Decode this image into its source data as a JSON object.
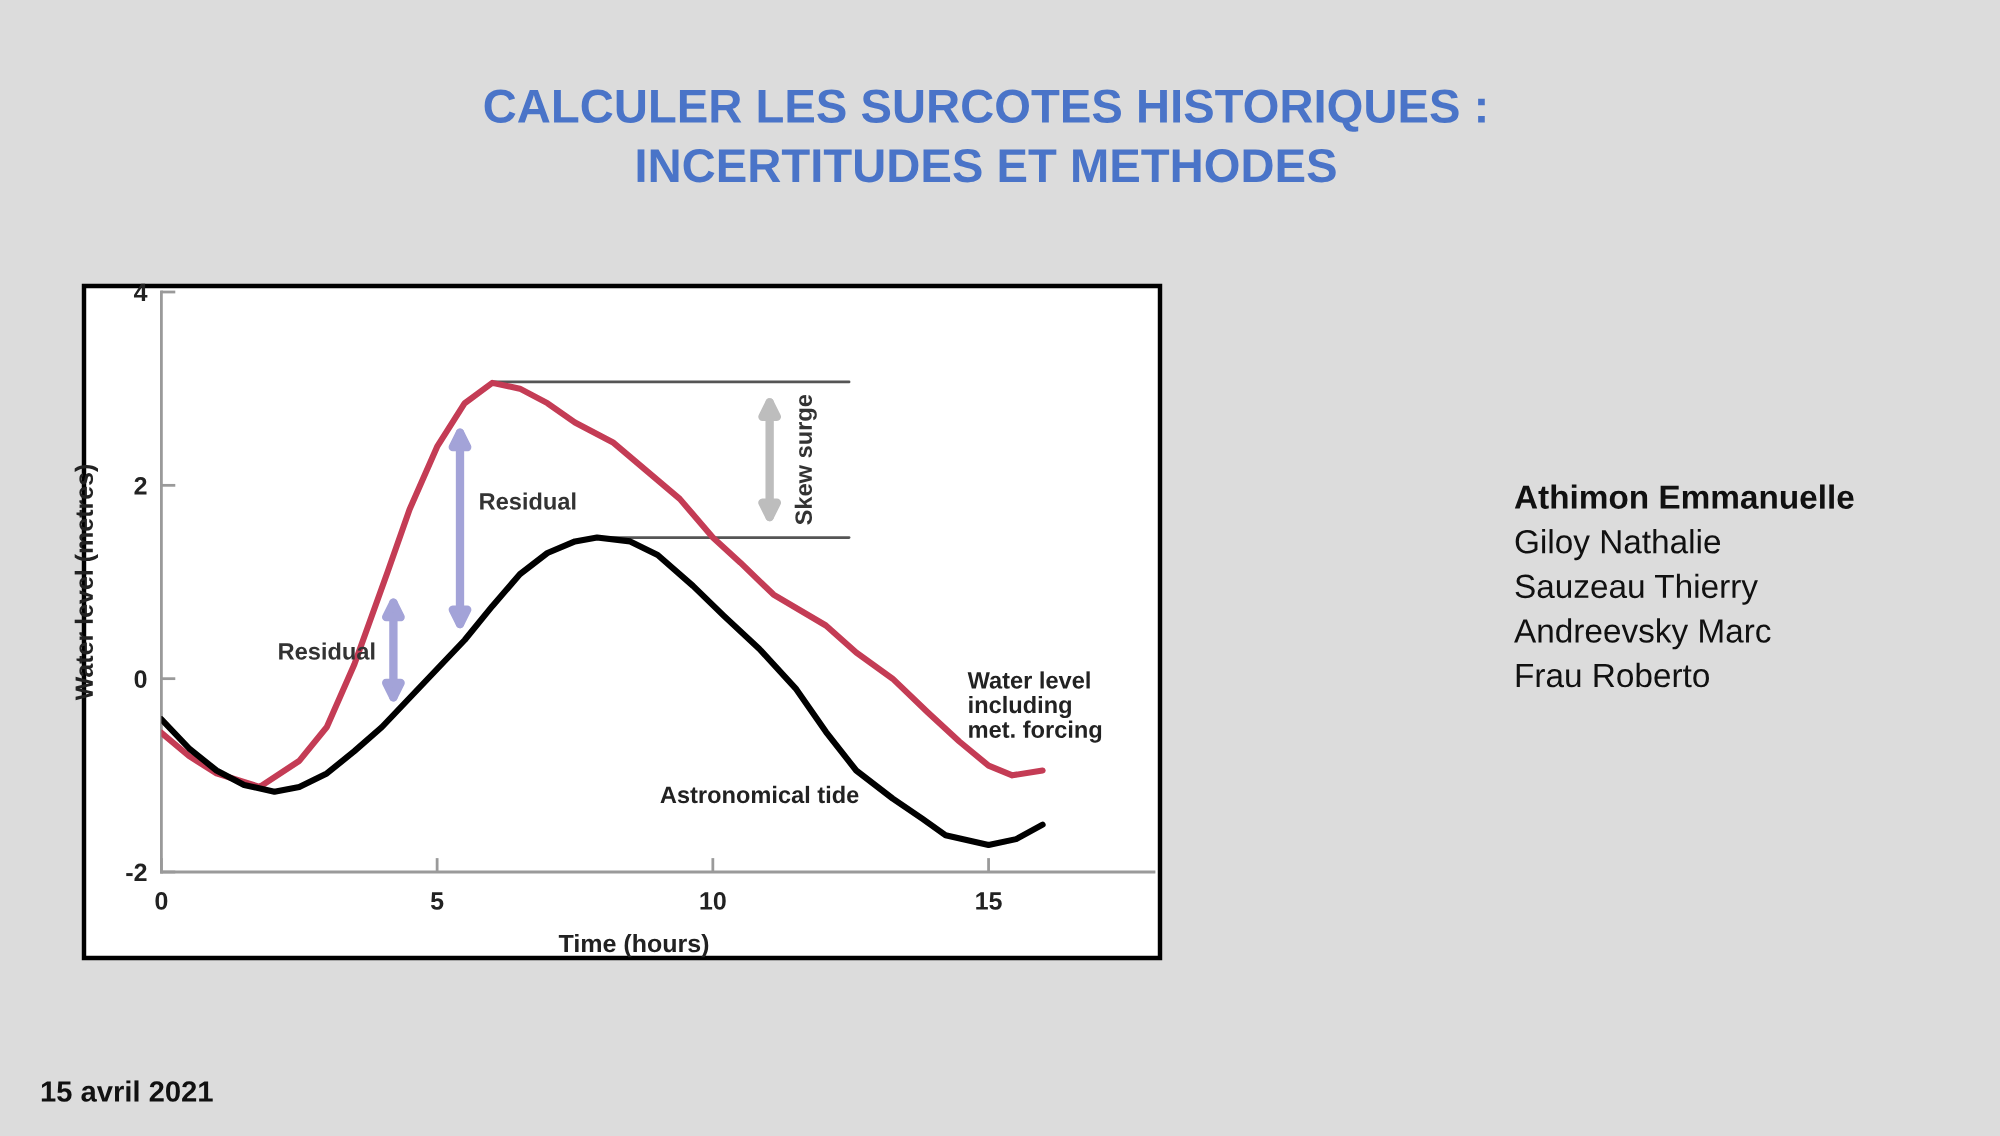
{
  "chart_data": {
    "type": "line",
    "title": "CALCULER LES SURCOTES HISTORIQUES :\nINCERTITUDES ET METHODES",
    "xlabel": "Time (hours)",
    "ylabel": "Water level (metres)",
    "xlim": [
      0,
      18
    ],
    "ylim": [
      -2,
      4
    ],
    "xticks": [
      0,
      5,
      10,
      15
    ],
    "yticks": [
      -2,
      0,
      2,
      4
    ],
    "series": [
      {
        "name": "Water level\nincluding\nmet. forcing",
        "color": "#c43c55",
        "x": [
          0,
          0.5,
          1.0,
          1.78,
          2.5,
          3.0,
          3.5,
          4.1,
          4.5,
          5.0,
          5.5,
          6.0,
          6.5,
          7.0,
          7.5,
          8.2,
          8.8,
          9.4,
          10.0,
          10.5,
          11.1,
          12.05,
          12.6,
          13.26,
          13.9,
          14.47,
          15.0,
          15.43,
          15.98
        ],
        "values": [
          -0.56,
          -0.8,
          -0.98,
          -1.12,
          -0.85,
          -0.5,
          0.15,
          1.1,
          1.75,
          2.4,
          2.85,
          3.06,
          3.0,
          2.85,
          2.65,
          2.44,
          2.15,
          1.86,
          1.46,
          1.2,
          0.87,
          0.55,
          0.27,
          0.0,
          -0.35,
          -0.65,
          -0.9,
          -1.0,
          -0.95
        ]
      },
      {
        "name": "Astronomical tide",
        "color": "#000000",
        "x": [
          0,
          0.5,
          1.0,
          1.5,
          2.05,
          2.5,
          3.0,
          3.5,
          4.0,
          4.5,
          5.0,
          5.5,
          6.0,
          6.5,
          7.0,
          7.5,
          7.9,
          8.5,
          9.0,
          9.64,
          10.2,
          10.84,
          11.5,
          12.05,
          12.6,
          13.26,
          13.8,
          14.22,
          15.0,
          15.5,
          15.98
        ],
        "values": [
          -0.42,
          -0.72,
          -0.95,
          -1.1,
          -1.17,
          -1.12,
          -0.98,
          -0.75,
          -0.5,
          -0.2,
          0.1,
          0.4,
          0.75,
          1.08,
          1.3,
          1.42,
          1.46,
          1.42,
          1.28,
          0.96,
          0.65,
          0.31,
          -0.1,
          -0.55,
          -0.95,
          -1.24,
          -1.45,
          -1.62,
          -1.72,
          -1.66,
          -1.51
        ]
      },
      {
        "color": "#555555",
        "x": [
          6.0,
          12.47
        ],
        "values": [
          3.07,
          3.07
        ]
      },
      {
        "color": "#555555",
        "x": [
          7.9,
          12.47
        ],
        "values": [
          1.46,
          1.46
        ]
      }
    ],
    "annotations": [
      "Residual",
      "Residual",
      {
        "text": "Skew surge",
        "x": 11.03,
        "y": 3.07
      },
      "Athimon Emmanuelle",
      "Giloy Nathalie",
      "Sauzeau Thierry",
      "Andreevsky Marc",
      "Frau Roberto",
      "15 avril 2021"
    ]
  }
}
